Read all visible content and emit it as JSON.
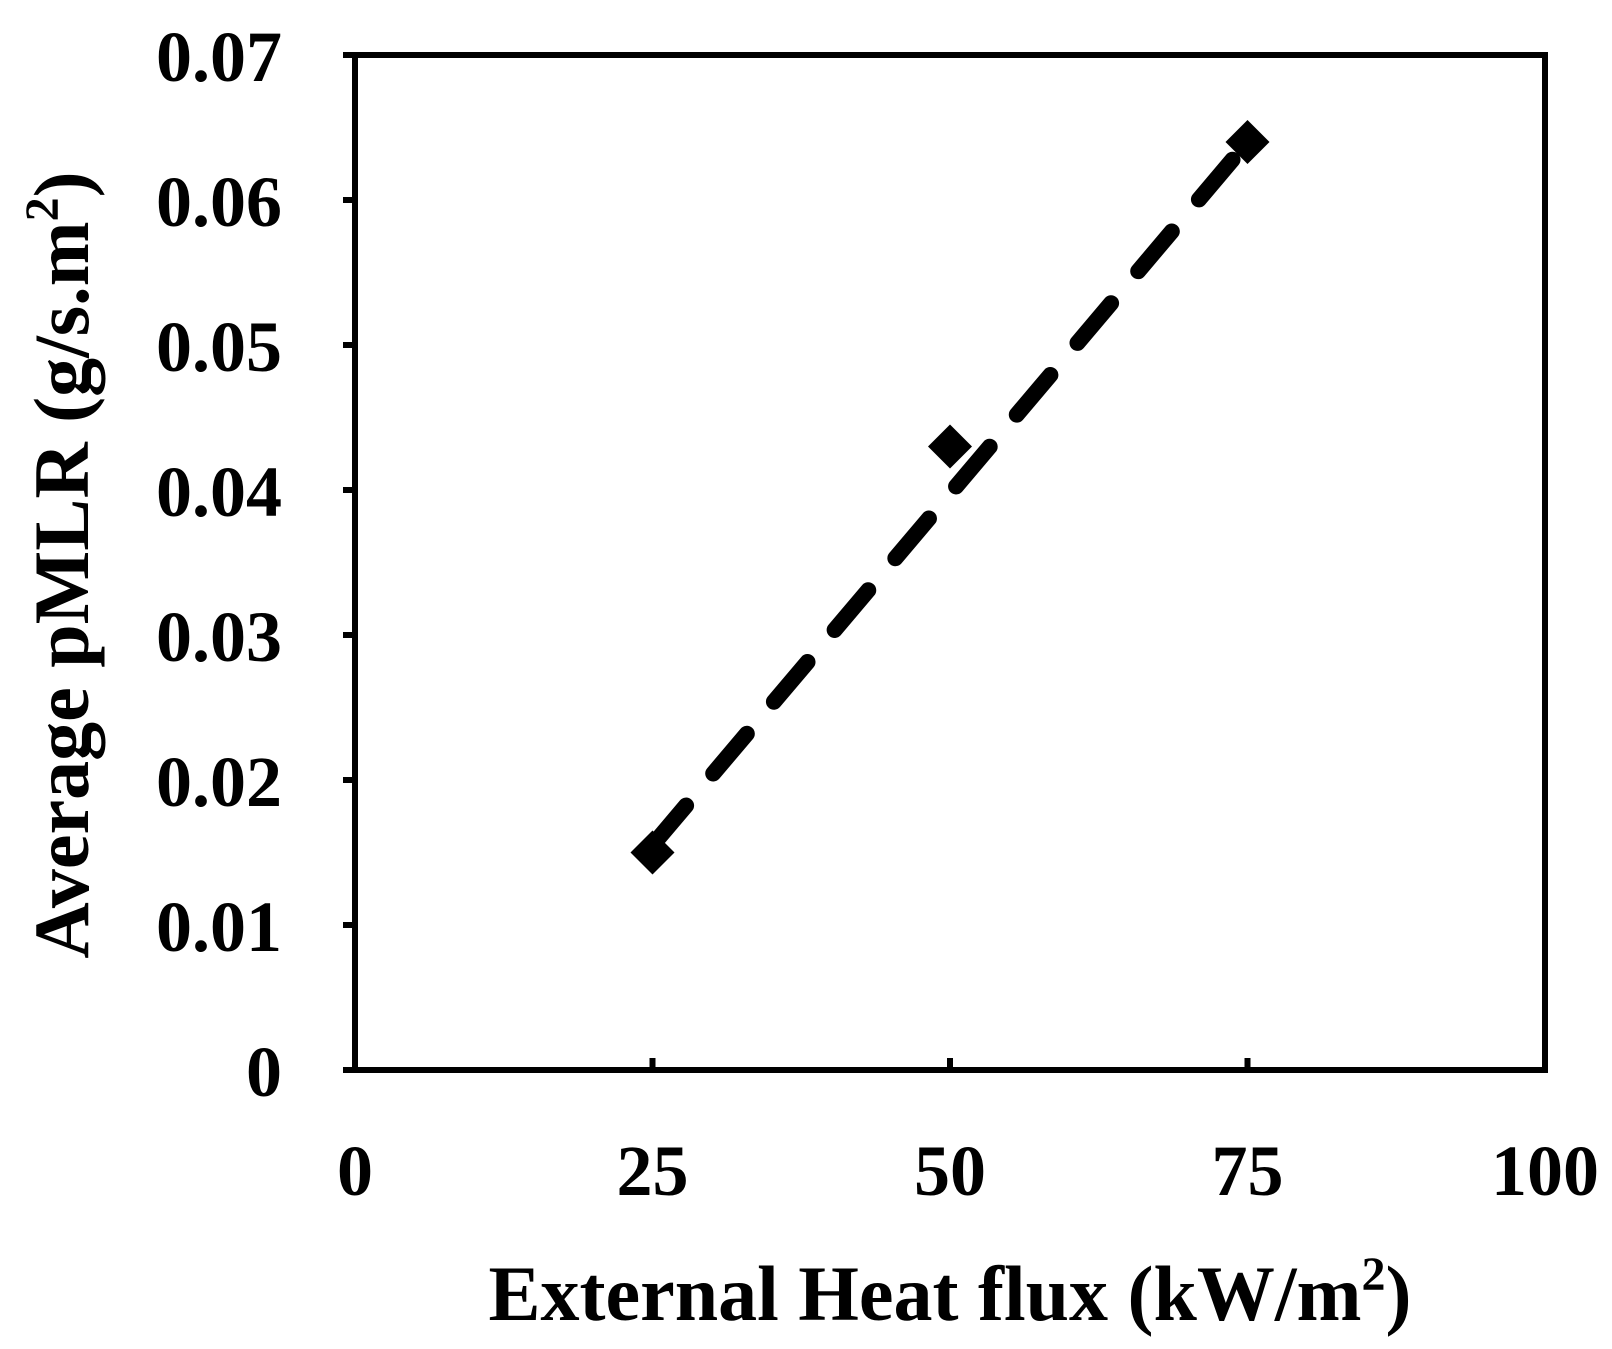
{
  "chart_data": {
    "type": "scatter",
    "title": "",
    "xlabel": "External Heat flux (kW/m",
    "xlabel_sup": "2",
    "xlabel_tail": ")",
    "ylabel": "Average pMLR (g/s.m",
    "ylabel_sup": "2",
    "ylabel_tail": ")",
    "xlim": [
      0,
      100
    ],
    "ylim": [
      0,
      0.07
    ],
    "xticks": [
      "0",
      "25",
      "50",
      "75",
      "100"
    ],
    "yticks": [
      "0",
      "0.01",
      "0.02",
      "0.03",
      "0.04",
      "0.05",
      "0.06",
      "0.07"
    ],
    "grid": false,
    "legend": false,
    "series": [
      {
        "marker": "diamond",
        "x": [
          25,
          50,
          75
        ],
        "y": [
          0.015,
          0.043,
          0.064
        ]
      }
    ],
    "trendline": {
      "style": "dashed",
      "type": "linear",
      "x": [
        25,
        75
      ],
      "y": [
        0.0155,
        0.064
      ]
    },
    "colors": {
      "marker": "#000000",
      "line": "#000000",
      "axis": "#000000"
    }
  }
}
